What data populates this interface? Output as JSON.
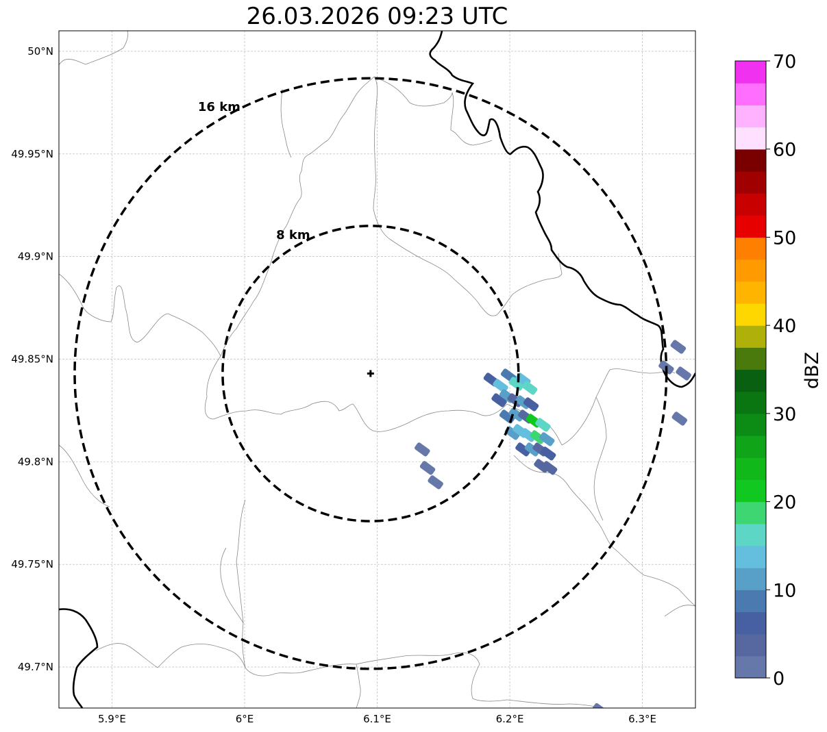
{
  "title": "26.03.2026 09:23 UTC",
  "map": {
    "lon_range": [
      5.86,
      6.34
    ],
    "lat_range": [
      49.68,
      50.01
    ],
    "grid": true,
    "x_ticks": [
      {
        "value": 5.9,
        "label": "5.9°E"
      },
      {
        "value": 6.0,
        "label": "6°E"
      },
      {
        "value": 6.1,
        "label": "6.1°E"
      },
      {
        "value": 6.2,
        "label": "6.2°E"
      },
      {
        "value": 6.3,
        "label": "6.3°E"
      }
    ],
    "y_ticks": [
      {
        "value": 49.7,
        "label": "49.7°N"
      },
      {
        "value": 49.75,
        "label": "49.75°N"
      },
      {
        "value": 49.8,
        "label": "49.8°N"
      },
      {
        "value": 49.85,
        "label": "49.85°N"
      },
      {
        "value": 49.9,
        "label": "49.9°N"
      },
      {
        "value": 49.95,
        "label": "49.95°N"
      },
      {
        "value": 50.0,
        "label": "50°N"
      }
    ],
    "radar_site": {
      "lon": 6.095,
      "lat": 49.843,
      "marker": "plus"
    },
    "range_rings": [
      {
        "radius_km": 8,
        "label": "8 km"
      },
      {
        "radius_km": 16,
        "label": "16 km"
      }
    ]
  },
  "colorbar": {
    "label": "dBZ",
    "min": 0,
    "max": 70,
    "ticks": [
      0,
      10,
      20,
      30,
      40,
      50,
      60,
      70
    ],
    "colors": [
      "#6678aa",
      "#5768a1",
      "#4660a2",
      "#4b7ab0",
      "#58a0c8",
      "#64bedd",
      "#5ed6c5",
      "#3ed672",
      "#10c820",
      "#10b81a",
      "#10a418",
      "#0c8c14",
      "#0a7612",
      "#086010",
      "#4a7a0c",
      "#b0b00a",
      "#ffd700",
      "#ffb400",
      "#ff9a00",
      "#ff7f00",
      "#e60000",
      "#c80000",
      "#a00000",
      "#7a0000",
      "#ffe0ff",
      "#ffb2ff",
      "#ff6eff",
      "#f032f0"
    ]
  },
  "echoes": [
    {
      "lon": 6.186,
      "lat": 49.84,
      "dbz": 5
    },
    {
      "lon": 6.193,
      "lat": 49.837,
      "dbz": 13
    },
    {
      "lon": 6.199,
      "lat": 49.842,
      "dbz": 8
    },
    {
      "lon": 6.205,
      "lat": 49.838,
      "dbz": 15
    },
    {
      "lon": 6.21,
      "lat": 49.84,
      "dbz": 13
    },
    {
      "lon": 6.215,
      "lat": 49.836,
      "dbz": 16
    },
    {
      "lon": 6.192,
      "lat": 49.83,
      "dbz": 6
    },
    {
      "lon": 6.198,
      "lat": 49.832,
      "dbz": 11
    },
    {
      "lon": 6.204,
      "lat": 49.83,
      "dbz": 4
    },
    {
      "lon": 6.21,
      "lat": 49.829,
      "dbz": 12
    },
    {
      "lon": 6.216,
      "lat": 49.828,
      "dbz": 6
    },
    {
      "lon": 6.198,
      "lat": 49.822,
      "dbz": 9
    },
    {
      "lon": 6.205,
      "lat": 49.823,
      "dbz": 12
    },
    {
      "lon": 6.212,
      "lat": 49.822,
      "dbz": 3
    },
    {
      "lon": 6.218,
      "lat": 49.82,
      "dbz": 21
    },
    {
      "lon": 6.225,
      "lat": 49.818,
      "dbz": 17
    },
    {
      "lon": 6.202,
      "lat": 49.814,
      "dbz": 10
    },
    {
      "lon": 6.208,
      "lat": 49.815,
      "dbz": 13
    },
    {
      "lon": 6.214,
      "lat": 49.813,
      "dbz": 14
    },
    {
      "lon": 6.221,
      "lat": 49.812,
      "dbz": 18
    },
    {
      "lon": 6.228,
      "lat": 49.811,
      "dbz": 11
    },
    {
      "lon": 6.21,
      "lat": 49.806,
      "dbz": 7
    },
    {
      "lon": 6.217,
      "lat": 49.806,
      "dbz": 10
    },
    {
      "lon": 6.223,
      "lat": 49.806,
      "dbz": 4
    },
    {
      "lon": 6.229,
      "lat": 49.804,
      "dbz": 5
    },
    {
      "lon": 6.224,
      "lat": 49.798,
      "dbz": 4
    },
    {
      "lon": 6.23,
      "lat": 49.797,
      "dbz": 3
    },
    {
      "lon": 6.134,
      "lat": 49.806,
      "dbz": 2
    },
    {
      "lon": 6.138,
      "lat": 49.797,
      "dbz": 2
    },
    {
      "lon": 6.144,
      "lat": 49.79,
      "dbz": 2
    },
    {
      "lon": 6.327,
      "lat": 49.856,
      "dbz": 2
    },
    {
      "lon": 6.331,
      "lat": 49.843,
      "dbz": 2
    },
    {
      "lon": 6.328,
      "lat": 49.821,
      "dbz": 2
    },
    {
      "lon": 6.318,
      "lat": 49.846,
      "dbz": 2
    },
    {
      "lon": 6.268,
      "lat": 49.679,
      "dbz": 2
    }
  ]
}
